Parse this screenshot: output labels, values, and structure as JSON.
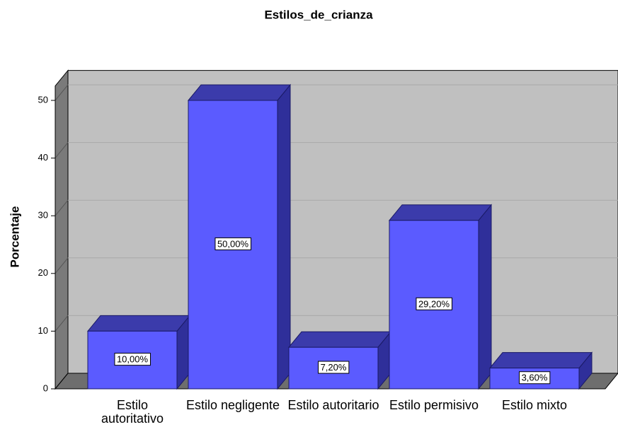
{
  "chart_data": {
    "type": "bar3d",
    "title": "Estilos_de_crianza",
    "y_label": "Porcentaje",
    "categories": [
      "Estilo autoritativo",
      "Estilo negligente",
      "Estilo autoritario",
      "Estilo permisivo",
      "Estilo mixto"
    ],
    "values": [
      10,
      50,
      7.2,
      29.2,
      3.6
    ],
    "value_labels": [
      "10,00%",
      "50,00%",
      "7,20%",
      "29,20%",
      "3,60%"
    ],
    "color": "#5b5bff",
    "ylim": [
      0,
      52.5
    ],
    "yticks": [
      0,
      10,
      20,
      30,
      40,
      50
    ],
    "grid": true
  }
}
